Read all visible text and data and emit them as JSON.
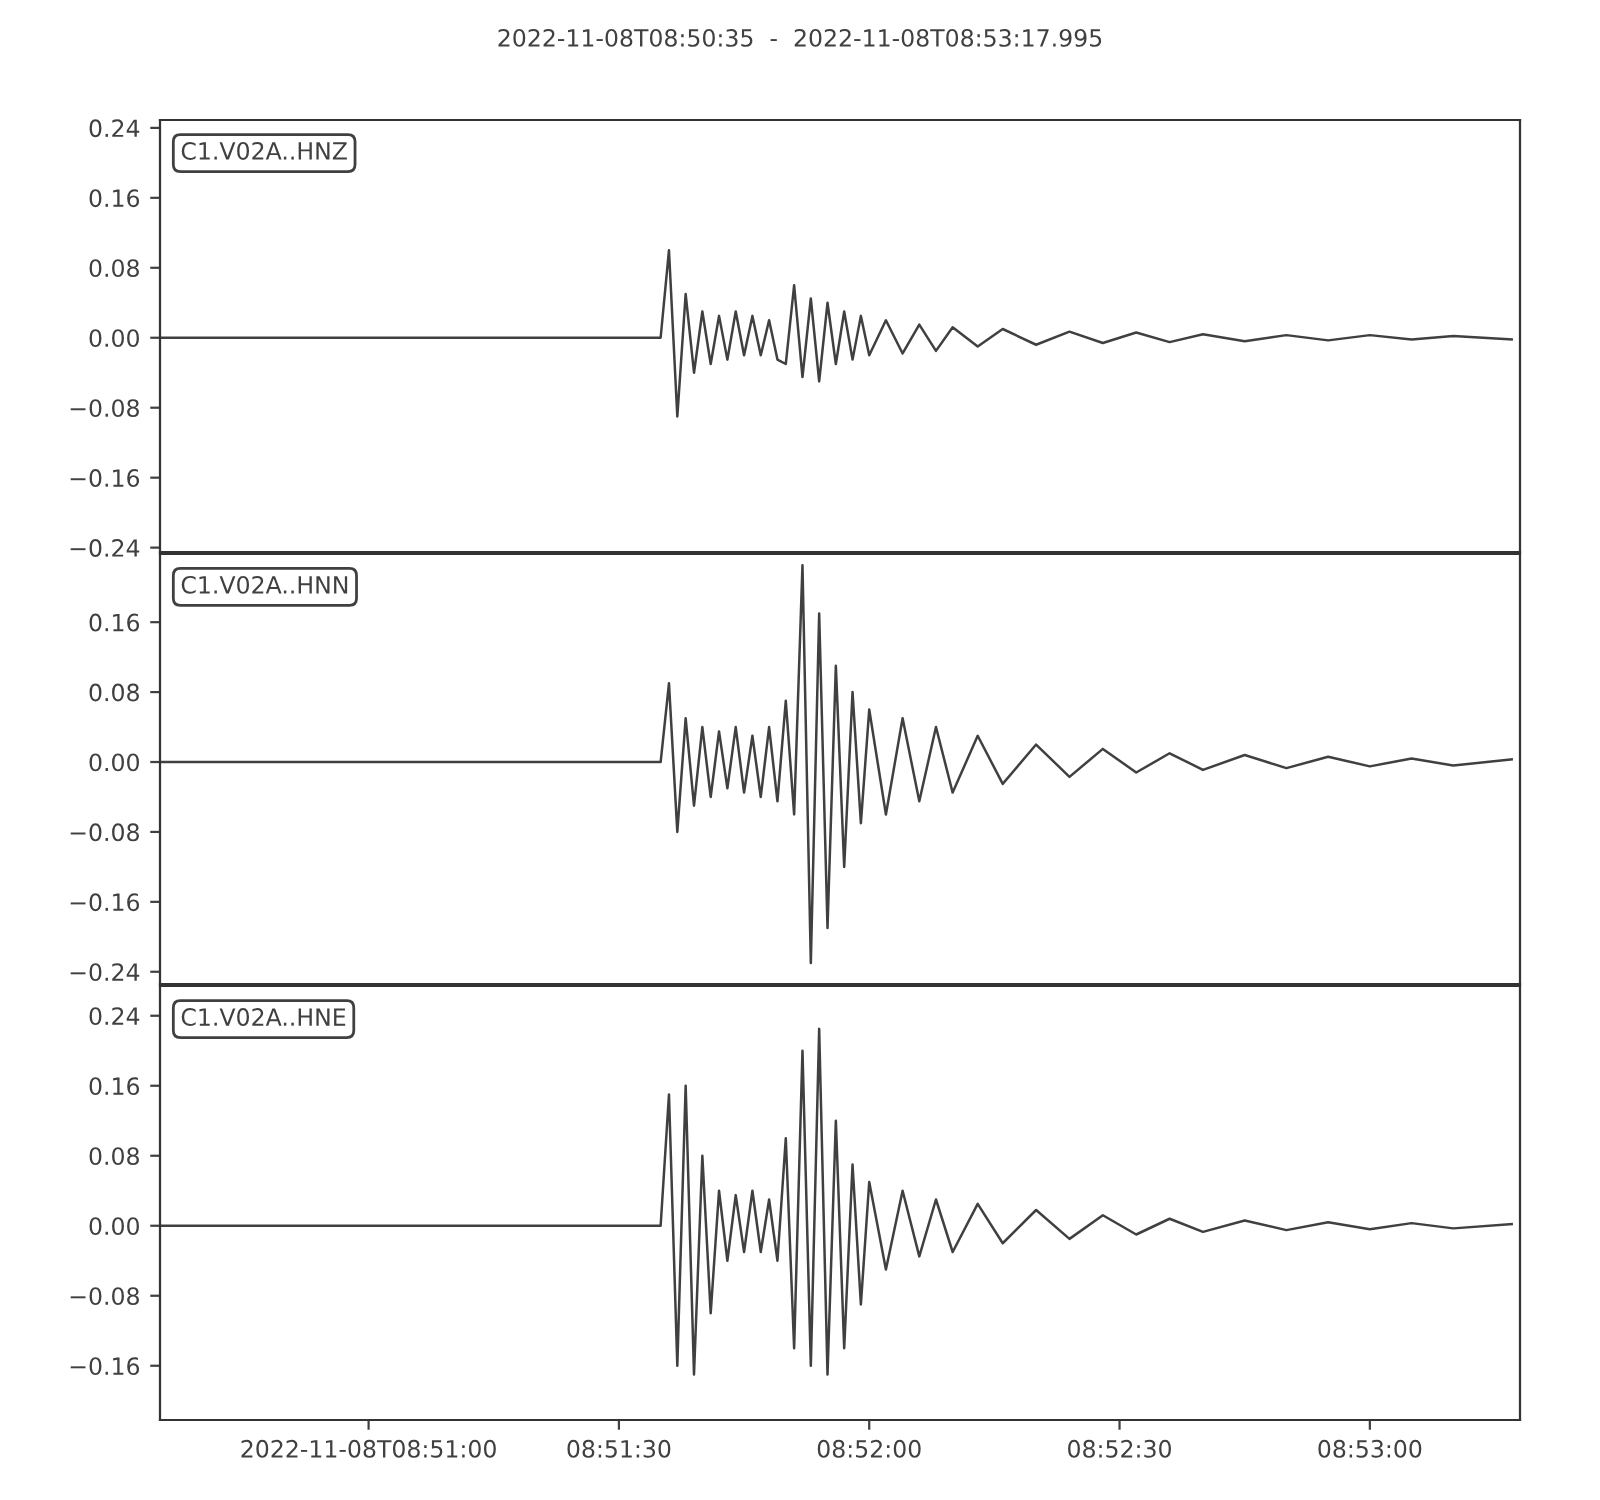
{
  "chart_data": [
    {
      "type": "line",
      "title": "2022-11-08T08:50:35  -  2022-11-08T08:53:17.995",
      "annotations": [
        "C1.V02A..HNZ"
      ],
      "tick_labels": "y",
      "grid": false,
      "marker": "none",
      "line_style": "solid",
      "xlim": [
        "2022-11-08T08:50:35",
        "2022-11-08T08:53:17.995"
      ],
      "ylim": [
        -0.245,
        0.249
      ],
      "yticks": [
        0.24,
        0.16,
        0.08,
        {
          "value": 0,
          "label": "0.00"
        },
        {
          "value": -0.08,
          "label": "−0.08"
        },
        {
          "value": -0.16,
          "label": "−0.16"
        },
        {
          "value": -0.24,
          "label": "−0.24"
        }
      ],
      "series": [
        {
          "color": "#404040",
          "x": [
            "2022-11-08T08:50:35",
            "2022-11-08T08:51:35",
            "2022-11-08T08:51:36",
            "2022-11-08T08:51:37",
            "2022-11-08T08:51:38",
            "2022-11-08T08:51:39",
            "2022-11-08T08:51:40",
            "2022-11-08T08:51:41",
            "2022-11-08T08:51:42",
            "2022-11-08T08:51:43",
            "2022-11-08T08:51:44",
            "2022-11-08T08:51:45",
            "2022-11-08T08:51:46",
            "2022-11-08T08:51:47",
            "2022-11-08T08:51:48",
            "2022-11-08T08:51:49",
            "2022-11-08T08:51:50",
            "2022-11-08T08:51:51",
            "2022-11-08T08:51:52",
            "2022-11-08T08:51:53",
            "2022-11-08T08:51:54",
            "2022-11-08T08:51:55",
            "2022-11-08T08:51:56",
            "2022-11-08T08:51:57",
            "2022-11-08T08:51:58",
            "2022-11-08T08:51:59",
            "2022-11-08T08:52:00",
            "2022-11-08T08:52:02",
            "2022-11-08T08:52:04",
            "2022-11-08T08:52:06",
            "2022-11-08T08:52:08",
            "2022-11-08T08:52:10",
            "2022-11-08T08:52:13",
            "2022-11-08T08:52:16",
            "2022-11-08T08:52:20",
            "2022-11-08T08:52:24",
            "2022-11-08T08:52:28",
            "2022-11-08T08:52:32",
            "2022-11-08T08:52:36",
            "2022-11-08T08:52:40",
            "2022-11-08T08:52:45",
            "2022-11-08T08:52:50",
            "2022-11-08T08:52:55",
            "2022-11-08T08:53:00",
            "2022-11-08T08:53:05",
            "2022-11-08T08:53:10",
            "2022-11-08T08:53:17"
          ],
          "values": [
            0,
            0,
            0.1,
            -0.09,
            0.05,
            -0.04,
            0.03,
            -0.03,
            0.025,
            -0.025,
            0.03,
            -0.02,
            0.025,
            -0.02,
            0.02,
            -0.025,
            -0.03,
            0.06,
            -0.045,
            0.045,
            -0.05,
            0.04,
            -0.03,
            0.03,
            -0.025,
            0.025,
            -0.02,
            0.02,
            -0.018,
            0.015,
            -0.015,
            0.012,
            -0.01,
            0.01,
            -0.008,
            0.007,
            -0.006,
            0.006,
            -0.005,
            0.004,
            -0.004,
            0.003,
            -0.003,
            0.003,
            -0.002,
            0.002,
            -0.002
          ]
        }
      ]
    },
    {
      "type": "line",
      "annotations": [
        "C1.V02A..HNN"
      ],
      "tick_labels": "y",
      "grid": false,
      "marker": "none",
      "line_style": "solid",
      "xlim": [
        "2022-11-08T08:50:35",
        "2022-11-08T08:53:17.995"
      ],
      "ylim": [
        -0.254,
        0.238
      ],
      "yticks": [
        0.16,
        0.08,
        {
          "value": 0,
          "label": "0.00"
        },
        {
          "value": -0.08,
          "label": "−0.08"
        },
        {
          "value": -0.16,
          "label": "−0.16"
        },
        {
          "value": -0.24,
          "label": "−0.24"
        }
      ],
      "series": [
        {
          "color": "#404040",
          "x": [
            "2022-11-08T08:50:35",
            "2022-11-08T08:51:35",
            "2022-11-08T08:51:36",
            "2022-11-08T08:51:37",
            "2022-11-08T08:51:38",
            "2022-11-08T08:51:39",
            "2022-11-08T08:51:40",
            "2022-11-08T08:51:41",
            "2022-11-08T08:51:42",
            "2022-11-08T08:51:43",
            "2022-11-08T08:51:44",
            "2022-11-08T08:51:45",
            "2022-11-08T08:51:46",
            "2022-11-08T08:51:47",
            "2022-11-08T08:51:48",
            "2022-11-08T08:51:49",
            "2022-11-08T08:51:50",
            "2022-11-08T08:51:51",
            "2022-11-08T08:51:52",
            "2022-11-08T08:51:53",
            "2022-11-08T08:51:54",
            "2022-11-08T08:51:55",
            "2022-11-08T08:51:56",
            "2022-11-08T08:51:57",
            "2022-11-08T08:51:58",
            "2022-11-08T08:51:59",
            "2022-11-08T08:52:00",
            "2022-11-08T08:52:02",
            "2022-11-08T08:52:04",
            "2022-11-08T08:52:06",
            "2022-11-08T08:52:08",
            "2022-11-08T08:52:10",
            "2022-11-08T08:52:13",
            "2022-11-08T08:52:16",
            "2022-11-08T08:52:20",
            "2022-11-08T08:52:24",
            "2022-11-08T08:52:28",
            "2022-11-08T08:52:32",
            "2022-11-08T08:52:36",
            "2022-11-08T08:52:40",
            "2022-11-08T08:52:45",
            "2022-11-08T08:52:50",
            "2022-11-08T08:52:55",
            "2022-11-08T08:53:00",
            "2022-11-08T08:53:05",
            "2022-11-08T08:53:10",
            "2022-11-08T08:53:17"
          ],
          "values": [
            0,
            0,
            0.09,
            -0.08,
            0.05,
            -0.05,
            0.04,
            -0.04,
            0.035,
            -0.03,
            0.04,
            -0.035,
            0.03,
            -0.04,
            0.04,
            -0.045,
            0.07,
            -0.06,
            0.225,
            -0.23,
            0.17,
            -0.19,
            0.11,
            -0.12,
            0.08,
            -0.07,
            0.06,
            -0.06,
            0.05,
            -0.045,
            0.04,
            -0.035,
            0.03,
            -0.025,
            0.02,
            -0.017,
            0.015,
            -0.012,
            0.01,
            -0.009,
            0.008,
            -0.007,
            0.006,
            -0.005,
            0.004,
            -0.004,
            0.003
          ]
        }
      ]
    },
    {
      "type": "line",
      "annotations": [
        "C1.V02A..HNE"
      ],
      "grid": false,
      "marker": "none",
      "line_style": "solid",
      "xlim": [
        "2022-11-08T08:50:35",
        "2022-11-08T08:53:17.995"
      ],
      "ylim": [
        -0.222,
        0.274
      ],
      "xticks": [
        {
          "value": "2022-11-08T08:51:00",
          "label": "2022-11-08T08:51:00"
        },
        {
          "value": "2022-11-08T08:51:30",
          "label": "08:51:30"
        },
        {
          "value": "2022-11-08T08:52:00",
          "label": "08:52:00"
        },
        {
          "value": "2022-11-08T08:52:30",
          "label": "08:52:30"
        },
        {
          "value": "2022-11-08T08:53:00",
          "label": "08:53:00"
        }
      ],
      "yticks": [
        0.24,
        0.16,
        0.08,
        {
          "value": 0,
          "label": "0.00"
        },
        {
          "value": -0.08,
          "label": "−0.08"
        },
        {
          "value": -0.16,
          "label": "−0.16"
        }
      ],
      "series": [
        {
          "color": "#404040",
          "x": [
            "2022-11-08T08:50:35",
            "2022-11-08T08:51:35",
            "2022-11-08T08:51:36",
            "2022-11-08T08:51:37",
            "2022-11-08T08:51:38",
            "2022-11-08T08:51:39",
            "2022-11-08T08:51:40",
            "2022-11-08T08:51:41",
            "2022-11-08T08:51:42",
            "2022-11-08T08:51:43",
            "2022-11-08T08:51:44",
            "2022-11-08T08:51:45",
            "2022-11-08T08:51:46",
            "2022-11-08T08:51:47",
            "2022-11-08T08:51:48",
            "2022-11-08T08:51:49",
            "2022-11-08T08:51:50",
            "2022-11-08T08:51:51",
            "2022-11-08T08:51:52",
            "2022-11-08T08:51:53",
            "2022-11-08T08:51:54",
            "2022-11-08T08:51:55",
            "2022-11-08T08:51:56",
            "2022-11-08T08:51:57",
            "2022-11-08T08:51:58",
            "2022-11-08T08:51:59",
            "2022-11-08T08:52:00",
            "2022-11-08T08:52:02",
            "2022-11-08T08:52:04",
            "2022-11-08T08:52:06",
            "2022-11-08T08:52:08",
            "2022-11-08T08:52:10",
            "2022-11-08T08:52:13",
            "2022-11-08T08:52:16",
            "2022-11-08T08:52:20",
            "2022-11-08T08:52:24",
            "2022-11-08T08:52:28",
            "2022-11-08T08:52:32",
            "2022-11-08T08:52:36",
            "2022-11-08T08:52:40",
            "2022-11-08T08:52:45",
            "2022-11-08T08:52:50",
            "2022-11-08T08:52:55",
            "2022-11-08T08:53:00",
            "2022-11-08T08:53:05",
            "2022-11-08T08:53:10",
            "2022-11-08T08:53:17"
          ],
          "values": [
            0,
            0,
            0.15,
            -0.16,
            0.16,
            -0.17,
            0.08,
            -0.1,
            0.04,
            -0.04,
            0.035,
            -0.03,
            0.04,
            -0.03,
            0.03,
            -0.04,
            0.1,
            -0.14,
            0.2,
            -0.16,
            0.225,
            -0.17,
            0.12,
            -0.14,
            0.07,
            -0.09,
            0.05,
            -0.05,
            0.04,
            -0.035,
            0.03,
            -0.03,
            0.025,
            -0.02,
            0.018,
            -0.015,
            0.012,
            -0.01,
            0.008,
            -0.007,
            0.006,
            -0.005,
            0.004,
            -0.004,
            0.003,
            -0.003,
            0.002
          ]
        }
      ]
    }
  ]
}
